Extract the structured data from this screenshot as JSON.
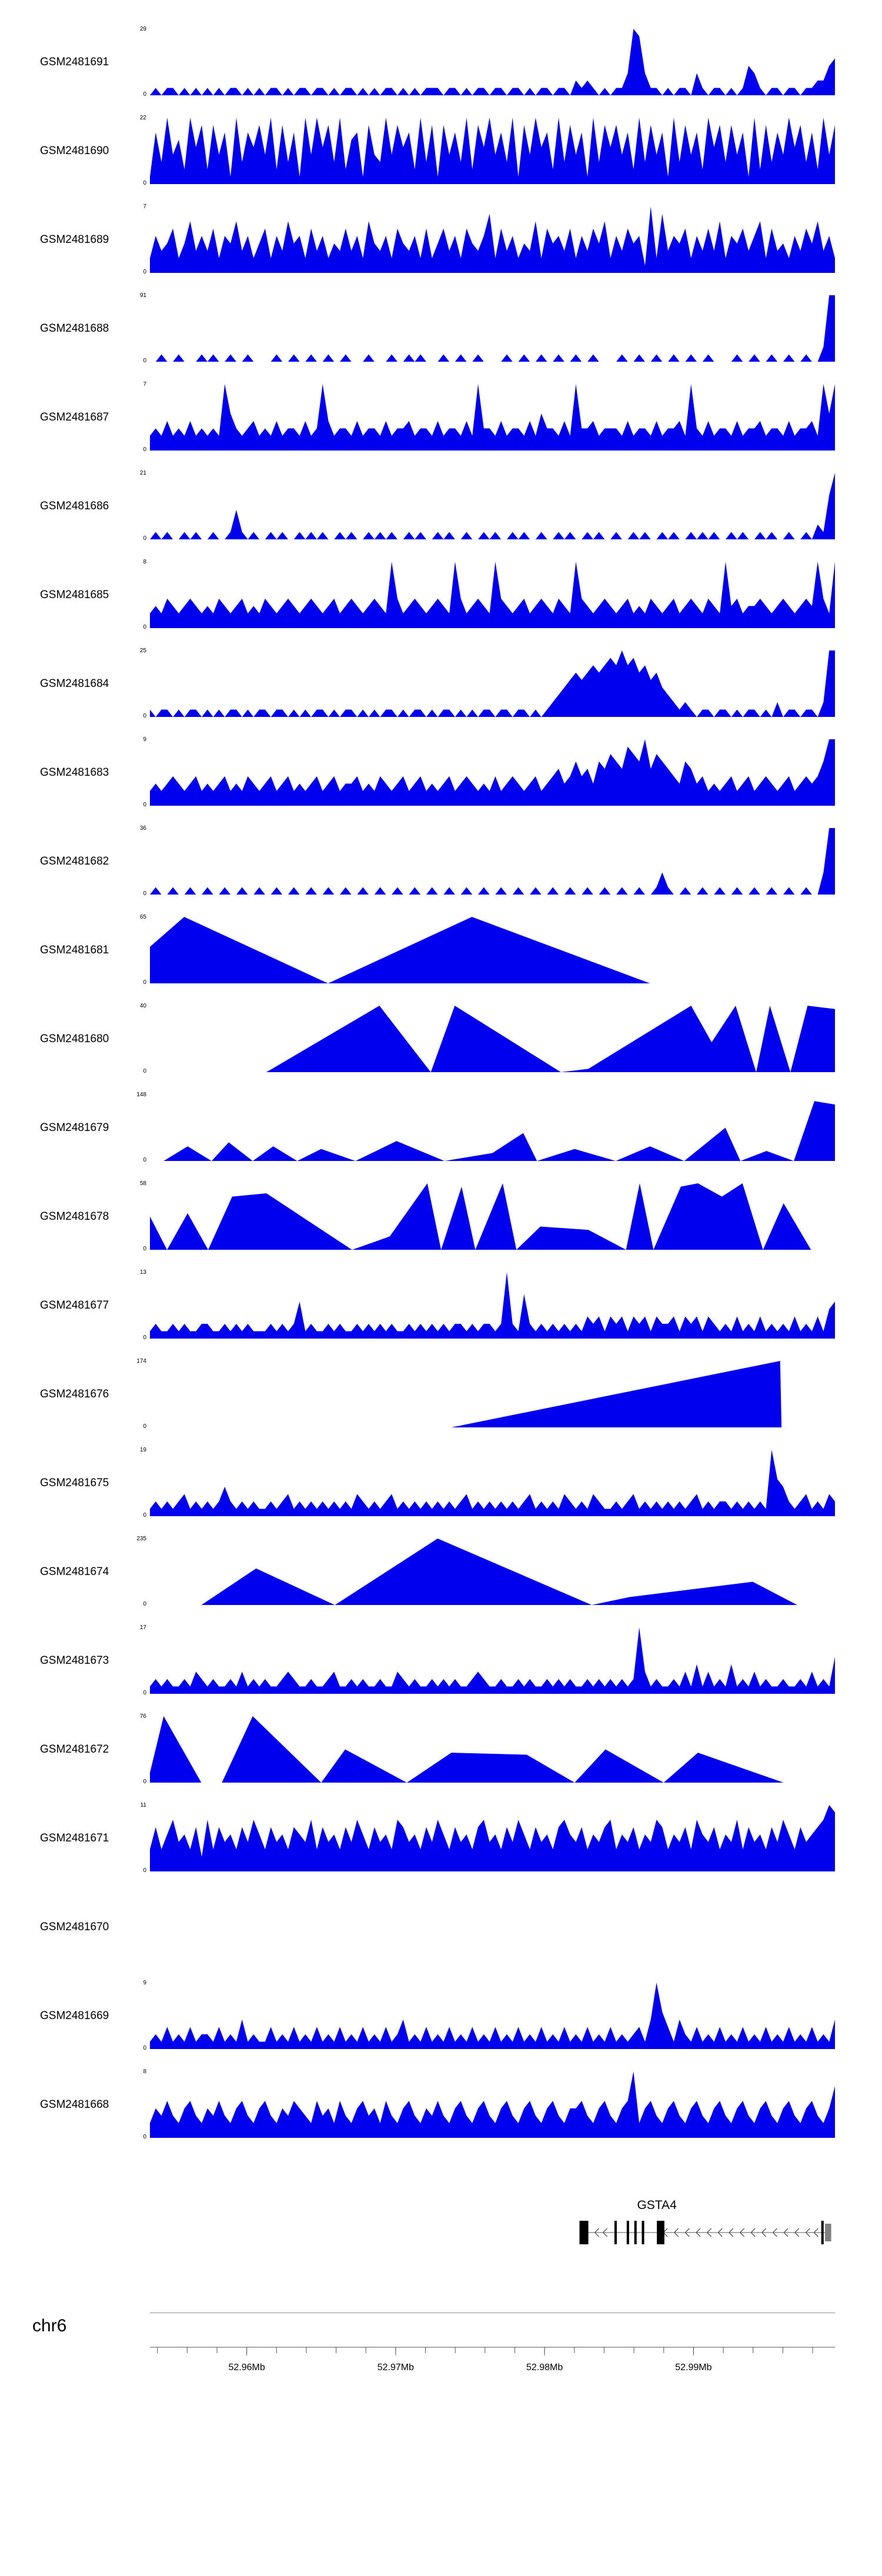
{
  "chart_data": {
    "type": "area",
    "title": "",
    "legend": "none",
    "grid": false,
    "signal_color": "#0000ee",
    "ymin_label": "0",
    "x_range_mb": [
      52.9535,
      52.9995
    ],
    "tracks": [
      {
        "name": "GSM2481691",
        "ymax": "29",
        "shape": "spikes",
        "values": "010110101010101101010110101101101011010101101010111011010110110110101101102121010113983110101103101101014310110110112245"
      },
      {
        "name": "GSM2481690",
        "ymax": "22",
        "shape": "spikes",
        "values": "173946295828471937584928371949583926718439485729381847392859473918495729384719385847293847193847295838471928374958372948"
      },
      {
        "name": "GSM2481689",
        "ymax": "7",
        "shape": "spikes",
        "values": "253462473536254735246253745263524363527435264352624635264358263524372645362536472536451928354625363725463572634253647352"
      },
      {
        "name": "GSM2481688",
        "ymax": "91",
        "shape": "spikes",
        "values": "001001000101001001000010010010010010001000100101000100100100001001001001001001000010010010010010010000100100100100100299"
      },
      {
        "name": "GSM2481687",
        "ymax": "7",
        "shape": "spikes",
        "values": "232423242323295323423242332423942332423324233423324233242933242332425332429334233324233242334293242332423342332423342959"
      },
      {
        "name": "GSM2481686",
        "ymax": "21",
        "shape": "spikes",
        "values": "010100101001001410100101001010100101001010100101001010010010100101001001010010100100101001010010101001010010100100102169"
      },
      {
        "name": "GSM2481685",
        "ymax": "8",
        "shape": "spikes",
        "values": "232432343232432342324323432343234234323432942343234329423432943234234324329432343234232432342343243293423343234323439429"
      },
      {
        "name": "GSM2481684",
        "ymax": "25",
        "shape": "spikes",
        "values": "101101011010101101011011010101101011010101101011010110101011011011010123456567678797867564321210110110101101020110110299"
      },
      {
        "name": "GSM2481683",
        "ymax": "9",
        "shape": "spikes",
        "values": "232343234232342324323423423234234233423243234234232342343232423432342345346453657658769576543653423234234234323423434699"
      },
      {
        "name": "GSM2481682",
        "ymax": "36",
        "shape": "spikes",
        "values": "010010010010010010010010010010010010010010010010010010010010010010010010010010010010010013100100100100100100100100100399"
      },
      {
        "name": "GSM2481681",
        "ymax": "65",
        "shape": "peaks",
        "points": [
          [
            0,
            0.55
          ],
          [
            0.05,
            1
          ],
          [
            0.26,
            0
          ],
          [
            0.47,
            1
          ],
          [
            0.73,
            0
          ]
        ]
      },
      {
        "name": "GSM2481680",
        "ymax": "40",
        "shape": "peaks",
        "points": [
          [
            0.17,
            0
          ],
          [
            0.335,
            1
          ],
          [
            0.41,
            0
          ],
          [
            0.445,
            1
          ],
          [
            0.6,
            0
          ],
          [
            0.64,
            0.05
          ],
          [
            0.79,
            1
          ],
          [
            0.82,
            0.45
          ],
          [
            0.855,
            1
          ],
          [
            0.885,
            0
          ],
          [
            0.905,
            1
          ],
          [
            0.935,
            0
          ],
          [
            0.96,
            1
          ],
          [
            1,
            0.95
          ]
        ]
      },
      {
        "name": "GSM2481679",
        "ymax": "148",
        "shape": "peaks",
        "points": [
          [
            0.02,
            0
          ],
          [
            0.055,
            0.22
          ],
          [
            0.09,
            0
          ],
          [
            0.115,
            0.28
          ],
          [
            0.15,
            0
          ],
          [
            0.18,
            0.22
          ],
          [
            0.215,
            0
          ],
          [
            0.25,
            0.18
          ],
          [
            0.3,
            0
          ],
          [
            0.36,
            0.3
          ],
          [
            0.43,
            0
          ],
          [
            0.5,
            0.12
          ],
          [
            0.545,
            0.42
          ],
          [
            0.565,
            0
          ],
          [
            0.62,
            0.18
          ],
          [
            0.68,
            0
          ],
          [
            0.73,
            0.22
          ],
          [
            0.78,
            0
          ],
          [
            0.84,
            0.5
          ],
          [
            0.862,
            0
          ],
          [
            0.9,
            0.15
          ],
          [
            0.94,
            0
          ],
          [
            0.97,
            0.9
          ],
          [
            1,
            0.85
          ]
        ]
      },
      {
        "name": "GSM2481678",
        "ymax": "58",
        "shape": "peaks",
        "points": [
          [
            0,
            0.5
          ],
          [
            0.025,
            0
          ],
          [
            0.055,
            0.55
          ],
          [
            0.085,
            0
          ],
          [
            0.12,
            0.8
          ],
          [
            0.17,
            0.85
          ],
          [
            0.295,
            0
          ],
          [
            0.35,
            0.2
          ],
          [
            0.405,
            1
          ],
          [
            0.425,
            0
          ],
          [
            0.455,
            0.95
          ],
          [
            0.475,
            0
          ],
          [
            0.515,
            1
          ],
          [
            0.535,
            0
          ],
          [
            0.57,
            0.35
          ],
          [
            0.64,
            0.3
          ],
          [
            0.695,
            0
          ],
          [
            0.715,
            1
          ],
          [
            0.735,
            0
          ],
          [
            0.775,
            0.95
          ],
          [
            0.8,
            1
          ],
          [
            0.835,
            0.8
          ],
          [
            0.865,
            1
          ],
          [
            0.895,
            0
          ],
          [
            0.925,
            0.7
          ],
          [
            0.965,
            0
          ]
        ]
      },
      {
        "name": "GSM2481677",
        "ymax": "13",
        "shape": "spikes",
        "values": "121121211221121212111212125121121211212121211212121212212122129216212121212132313231323132231323132121312131212131213145"
      },
      {
        "name": "GSM2481676",
        "ymax": "174",
        "shape": "peaks",
        "points": [
          [
            0.44,
            0
          ],
          [
            0.92,
            1
          ],
          [
            0.922,
            0
          ]
        ]
      },
      {
        "name": "GSM2481675",
        "ymax": "19",
        "shape": "spikes",
        "values": "121212312121242121211212312121212121321212312121212121231212121212312121321213211212312121212123121221212121954212312132"
      },
      {
        "name": "GSM2481674",
        "ymax": "235",
        "shape": "peaks",
        "points": [
          [
            0.075,
            0
          ],
          [
            0.155,
            0.55
          ],
          [
            0.27,
            0
          ],
          [
            0.42,
            1
          ],
          [
            0.645,
            0
          ],
          [
            0.7,
            0.12
          ],
          [
            0.88,
            0.35
          ],
          [
            0.945,
            0
          ]
        ]
      },
      {
        "name": "GSM2481673",
        "ymax": "17",
        "shape": "spikes",
        "values": "121211213212112131212112321121123112121121132121121212112321121121211212121121212121293121121314131214121312112112131215"
      },
      {
        "name": "GSM2481672",
        "ymax": "76",
        "shape": "peaks",
        "points": [
          [
            0,
            0.15
          ],
          [
            0.02,
            1
          ],
          [
            0.075,
            0
          ],
          [
            0.105,
            0
          ],
          [
            0.15,
            1
          ],
          [
            0.25,
            0
          ],
          [
            0.285,
            0.5
          ],
          [
            0.375,
            0
          ],
          [
            0.44,
            0.45
          ],
          [
            0.55,
            0.42
          ],
          [
            0.62,
            0
          ],
          [
            0.665,
            0.5
          ],
          [
            0.75,
            0
          ],
          [
            0.8,
            0.45
          ],
          [
            0.925,
            0
          ]
        ]
      },
      {
        "name": "GSM2481671",
        "ymax": "11",
        "shape": "spikes",
        "values": "363574536273645364753645365473645364753645376453647536453674536475364536754635467354635476354637546354736453647536456798"
      },
      {
        "name": "GSM2481670",
        "ymax": "",
        "shape": "empty",
        "values": ""
      },
      {
        "name": "GSM2481669",
        "ymax": "9",
        "shape": "spikes",
        "values": "121312131221312141211312131213121312131213124121312131213121312131213121312131213121231495314213121312131213121312131214"
      },
      {
        "name": "GSM2481668",
        "ymax": "8",
        "shape": "spikes",
        "values": "243532453243532453245324354325342532453425324532435324532453245324532453244532453245924532453245324532453245324532453247"
      }
    ],
    "gene_track": {
      "label": "GSTA4",
      "label_f": 0.74,
      "strand": "-",
      "line": [
        0.627,
        0.9945
      ],
      "exons": [
        {
          "f": 0.627,
          "w": 0.013,
          "type": "box"
        },
        {
          "f": 0.678,
          "w": 0.0035,
          "type": "bar"
        },
        {
          "f": 0.696,
          "w": 0.0035,
          "type": "bar"
        },
        {
          "f": 0.707,
          "w": 0.0035,
          "type": "bar"
        },
        {
          "f": 0.718,
          "w": 0.0035,
          "type": "bar"
        },
        {
          "f": 0.74,
          "w": 0.011,
          "type": "box"
        },
        {
          "f": 0.98,
          "w": 0.0035,
          "type": "bar"
        },
        {
          "f": 0.9855,
          "w": 0.009,
          "type": "utr"
        }
      ],
      "arrows": [
        0.652,
        0.664,
        0.752,
        0.768,
        0.784,
        0.8,
        0.816,
        0.832,
        0.848,
        0.864,
        0.88,
        0.896,
        0.912,
        0.928,
        0.944,
        0.96,
        0.972
      ]
    },
    "axis": {
      "chrom_label": "chr6",
      "minor_step_mb": 0.002,
      "ticks": [
        {
          "value": 52.96,
          "label": "52.96Mb"
        },
        {
          "value": 52.97,
          "label": "52.97Mb"
        },
        {
          "value": 52.98,
          "label": "52.98Mb"
        },
        {
          "value": 52.99,
          "label": "52.99Mb"
        }
      ]
    }
  }
}
